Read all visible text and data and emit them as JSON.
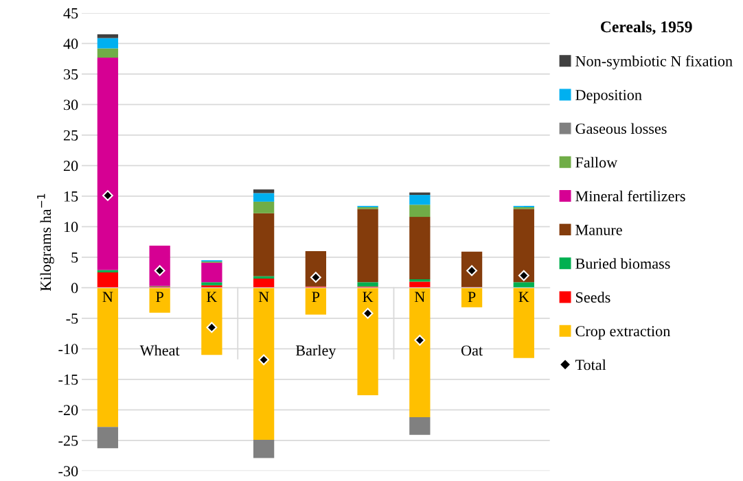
{
  "chart_data": {
    "type": "bar",
    "stacked": true,
    "legend_title": "Cereals, 1959",
    "ylabel": "Kilograms ha$^{−1}$",
    "categories": [
      "N",
      "P",
      "K",
      "N",
      "P",
      "K",
      "N",
      "P",
      "K"
    ],
    "annotations": [
      "Wheat",
      "Barley",
      "Oat"
    ],
    "series": [
      {
        "name": "Crop extraction",
        "color": "#ffc000",
        "values": [
          -22.8,
          -4.1,
          -11.0,
          -24.9,
          -4.4,
          -17.6,
          -21.2,
          -3.2,
          -11.5
        ]
      },
      {
        "name": "Seeds",
        "color": "#ff0000",
        "values": [
          2.5,
          0.2,
          0.4,
          1.5,
          0.2,
          0.2,
          1.0,
          0.1,
          null
        ]
      },
      {
        "name": "Buried biomass",
        "color": "#00b050",
        "values": [
          0.4,
          0.1,
          0.5,
          0.4,
          0.0,
          0.7,
          0.4,
          0.0,
          0.9
        ]
      },
      {
        "name": "Manure",
        "color": "#843c0c",
        "values": [
          0.0,
          0.0,
          0.0,
          10.3,
          5.8,
          12.0,
          10.2,
          5.8,
          12.0
        ]
      },
      {
        "name": "Mineral fertilizers",
        "color": "#d60093",
        "values": [
          34.8,
          6.6,
          3.2,
          0.0,
          0.0,
          0.0,
          0.0,
          0.0,
          0.0
        ]
      },
      {
        "name": "Fallow",
        "color": "#70ad47",
        "values": [
          1.5,
          0.0,
          0.2,
          1.9,
          0.0,
          0.3,
          2.0,
          0.0,
          0.3
        ]
      },
      {
        "name": "Gaseous losses",
        "color": "#808080",
        "values": [
          -3.5,
          0.0,
          0.0,
          -3.0,
          0.0,
          0.0,
          -2.9,
          0.0,
          0.0
        ]
      },
      {
        "name": "Deposition",
        "color": "#00b0f0",
        "values": [
          1.7,
          0.0,
          0.2,
          1.4,
          0.0,
          0.2,
          1.6,
          0.0,
          0.2
        ]
      },
      {
        "name": "Non-symbiotic N fixation",
        "color": "#404040",
        "values": [
          0.6,
          0.0,
          0.0,
          0.6,
          0.0,
          0.0,
          0.4,
          0.0,
          0.0
        ]
      },
      {
        "name": "Total",
        "type": "scatter",
        "color": "#000000",
        "values": [
          15.1,
          2.8,
          -6.5,
          -11.8,
          1.7,
          -4.2,
          -8.6,
          2.8,
          2.0
        ]
      }
    ],
    "ylim": [
      -30,
      45
    ],
    "yticks": [
      -30,
      -25,
      -20,
      -15,
      -10,
      -5,
      0,
      5,
      10,
      15,
      20,
      25,
      30,
      35,
      40,
      45
    ],
    "grid": "y",
    "legend": "right",
    "marker": "diamond"
  }
}
